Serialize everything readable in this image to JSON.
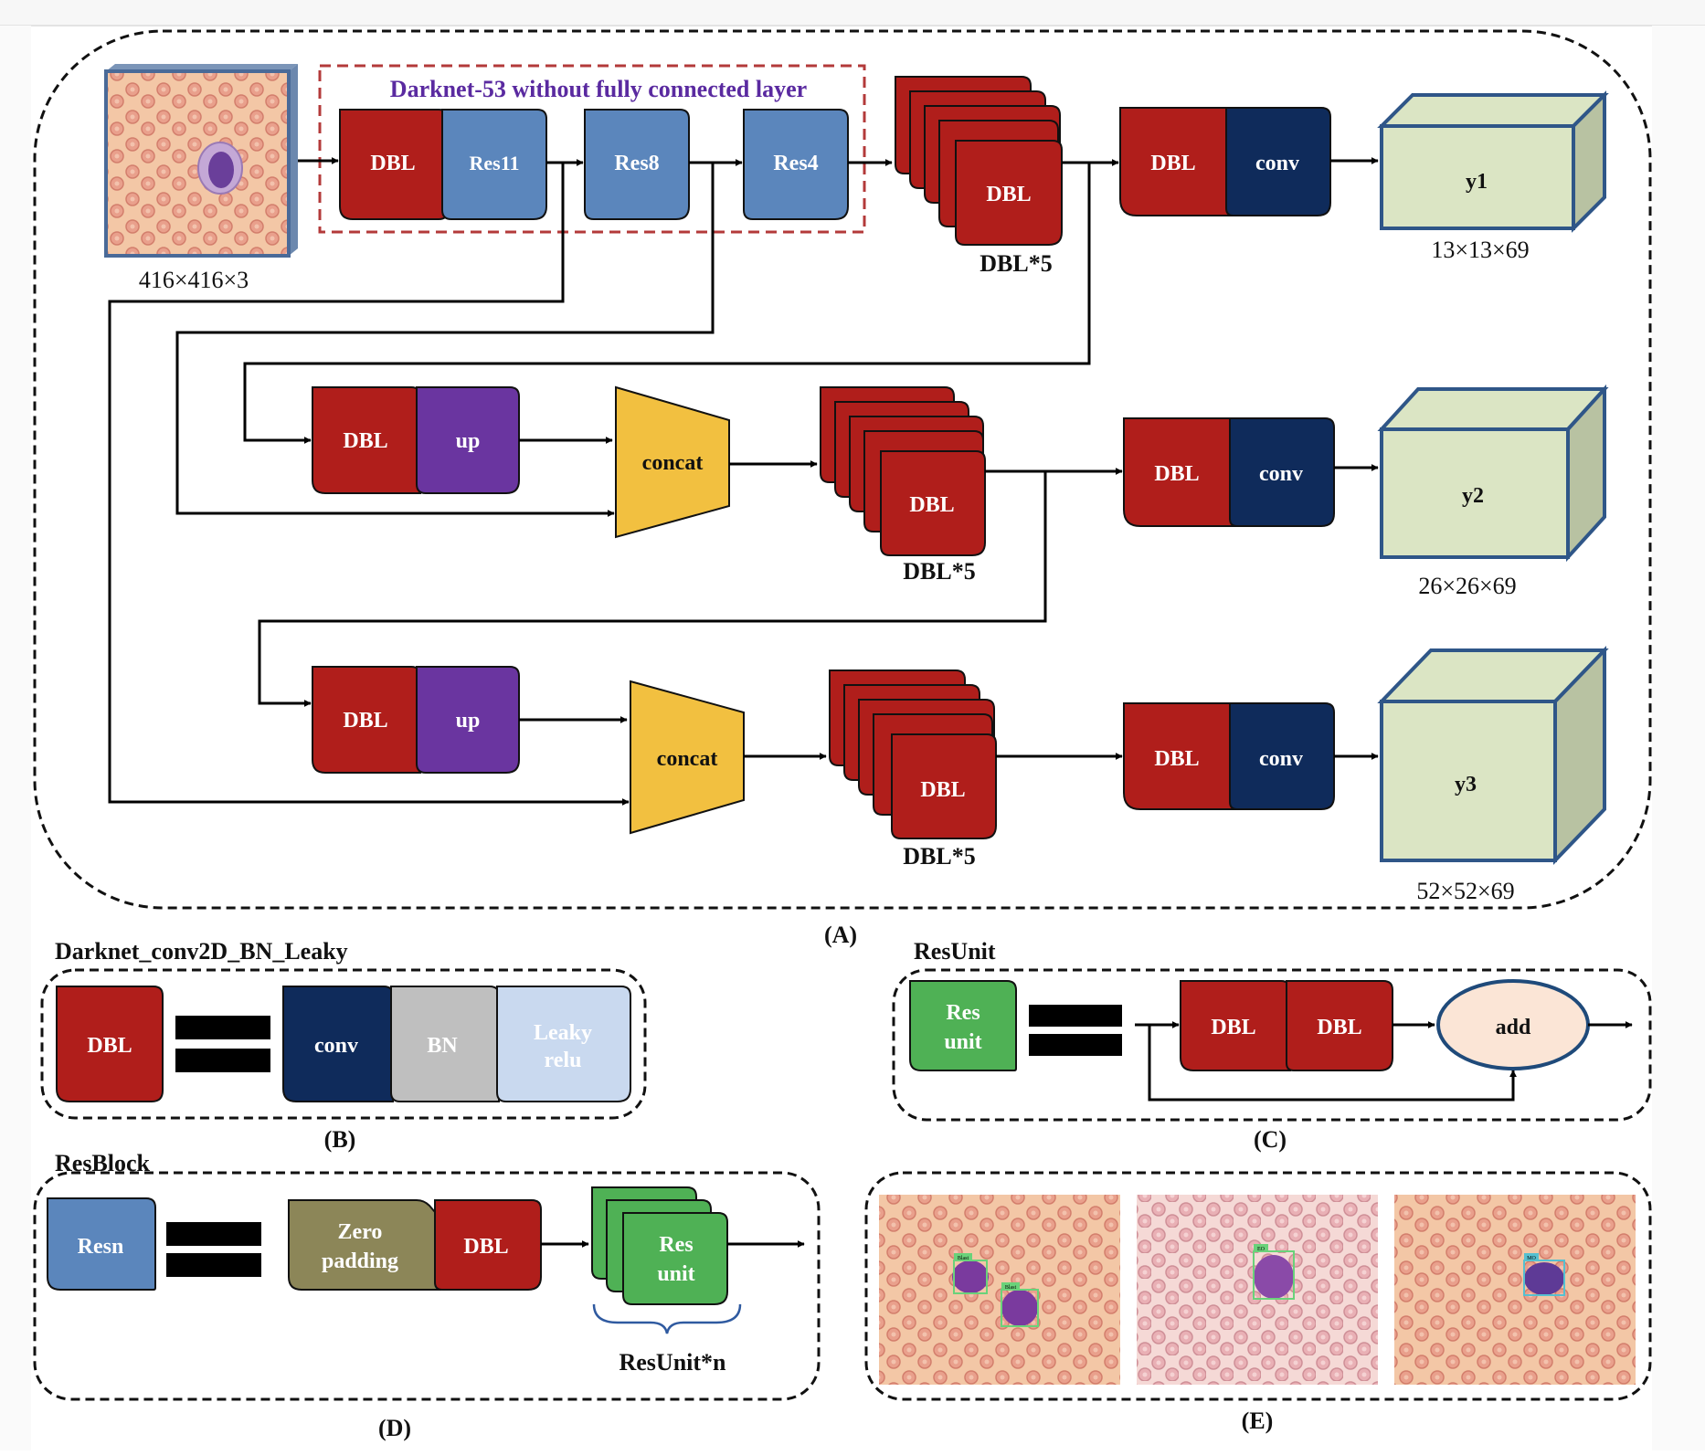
{
  "input": {
    "dims": "416×416×3"
  },
  "backbone": {
    "title": "Darknet-53 without fully connected layer",
    "dbl": "DBL",
    "res11": "Res11",
    "res8": "Res8",
    "res4": "Res4"
  },
  "branches": [
    {
      "stack_label": "DBL",
      "stack_caption": "DBL*5",
      "head_dbl": "DBL",
      "head_conv": "conv",
      "output": "y1",
      "output_dims": "13×13×69"
    },
    {
      "in_dbl": "DBL",
      "up": "up",
      "concat": "concat",
      "stack_label": "DBL",
      "stack_caption": "DBL*5",
      "head_dbl": "DBL",
      "head_conv": "conv",
      "output": "y2",
      "output_dims": "26×26×69"
    },
    {
      "in_dbl": "DBL",
      "up": "up",
      "concat": "concat",
      "stack_label": "DBL",
      "stack_caption": "DBL*5",
      "head_dbl": "DBL",
      "head_conv": "conv",
      "output": "y3",
      "output_dims": "52×52×69"
    }
  ],
  "panel_labels": {
    "a": "(A)",
    "b": "(B)",
    "c": "(C)",
    "d": "(D)",
    "e": "(E)"
  },
  "panel_b": {
    "title": "Darknet_conv2D_BN_Leaky",
    "dbl": "DBL",
    "conv": "conv",
    "bn": "BN",
    "leaky_1": "Leaky",
    "leaky_2": "relu"
  },
  "panel_c": {
    "title": "ResUnit",
    "res_1": "Res",
    "res_2": "unit",
    "dbl1": "DBL",
    "dbl2": "DBL",
    "add": "add"
  },
  "panel_d": {
    "title": "ResBlock",
    "resn": "Resn",
    "zero_1": "Zero",
    "zero_2": "padding",
    "dbl": "DBL",
    "unit_1": "Res",
    "unit_2": "unit",
    "caption": "ResUnit*n"
  },
  "panel_e": {
    "tags": [
      "Blast",
      "Blast",
      "EO",
      "MO"
    ]
  },
  "colors": {
    "dbl": "#b01e1b",
    "res": "#5b86bc",
    "conv": "#0f2b5b",
    "up": "#6a35a0",
    "concat": "#f2c040",
    "output": "#dbe5c4",
    "bn": "#bfbfbf",
    "leaky": "#c9d9ef",
    "resunit": "#4fb155",
    "zero": "#8c8658",
    "add": "#fbe5d6",
    "title": "#5a2aa0"
  }
}
